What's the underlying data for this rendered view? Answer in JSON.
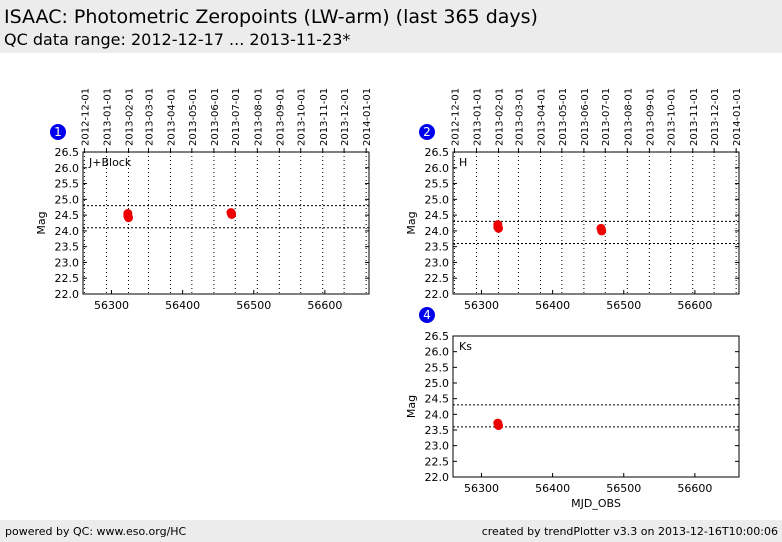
{
  "header": {
    "title": "ISAAC: Photometric Zeropoints (LW-arm) (last 365 days)",
    "subtitle": "QC data range: 2012-12-17 ... 2013-11-23*"
  },
  "footer": {
    "left": "powered by QC: www.eso.org/HC",
    "right": "created by trendPlotter v3.3 on 2013-12-16T10:00:06"
  },
  "colors": {
    "marker": "#ee0000",
    "badge": "#0000ee",
    "band": "#ececec"
  },
  "chart_data": [
    {
      "type": "scatter",
      "panel_number": "1",
      "label": "J+Block",
      "ylabel": "Mag",
      "xlabel": "",
      "xlim": [
        56260,
        56662
      ],
      "ylim": [
        22.0,
        26.5
      ],
      "x_ticks": [
        "56300",
        "56400",
        "56500",
        "56600"
      ],
      "y_ticks": [
        "22.0",
        "22.5",
        "23.0",
        "23.5",
        "24.0",
        "24.5",
        "25.0",
        "25.5",
        "26.0",
        "26.5"
      ],
      "date_ticks": [
        "2012-12-01",
        "2013-01-01",
        "2013-02-01",
        "2013-03-01",
        "2013-04-01",
        "2013-05-01",
        "2013-06-01",
        "2013-07-01",
        "2013-08-01",
        "2013-09-01",
        "2013-10-01",
        "2013-11-01",
        "2013-12-01",
        "2014-01-01"
      ],
      "ref_lines": [
        24.8,
        24.1
      ],
      "points": [
        {
          "x": 56323,
          "y": 24.55
        },
        {
          "x": 56323,
          "y": 24.48
        },
        {
          "x": 56324,
          "y": 24.42
        },
        {
          "x": 56468,
          "y": 24.58
        },
        {
          "x": 56469,
          "y": 24.52
        }
      ]
    },
    {
      "type": "scatter",
      "panel_number": "2",
      "label": "H",
      "ylabel": "Mag",
      "xlabel": "",
      "xlim": [
        56260,
        56662
      ],
      "ylim": [
        22.0,
        26.5
      ],
      "x_ticks": [
        "56300",
        "56400",
        "56500",
        "56600"
      ],
      "y_ticks": [
        "22.0",
        "22.5",
        "23.0",
        "23.5",
        "24.0",
        "24.5",
        "25.0",
        "25.5",
        "26.0",
        "26.5"
      ],
      "date_ticks": [
        "2012-12-01",
        "2013-01-01",
        "2013-02-01",
        "2013-03-01",
        "2013-04-01",
        "2013-05-01",
        "2013-06-01",
        "2013-07-01",
        "2013-08-01",
        "2013-09-01",
        "2013-10-01",
        "2013-11-01",
        "2013-12-01",
        "2014-01-01"
      ],
      "ref_lines": [
        24.3,
        23.6
      ],
      "points": [
        {
          "x": 56323,
          "y": 24.2
        },
        {
          "x": 56323,
          "y": 24.12
        },
        {
          "x": 56324,
          "y": 24.08
        },
        {
          "x": 56468,
          "y": 24.08
        },
        {
          "x": 56469,
          "y": 24.0
        }
      ]
    },
    {
      "type": "scatter",
      "panel_number": "4",
      "label": "Ks",
      "ylabel": "Mag",
      "xlabel": "MJD_OBS",
      "xlim": [
        56260,
        56662
      ],
      "ylim": [
        22.0,
        26.5
      ],
      "x_ticks": [
        "56300",
        "56400",
        "56500",
        "56600"
      ],
      "y_ticks": [
        "22.0",
        "22.5",
        "23.0",
        "23.5",
        "24.0",
        "24.5",
        "25.0",
        "25.5",
        "26.0",
        "26.5"
      ],
      "date_ticks": [],
      "ref_lines": [
        24.3,
        23.6
      ],
      "points": [
        {
          "x": 56323,
          "y": 23.72
        },
        {
          "x": 56324,
          "y": 23.64
        }
      ]
    }
  ]
}
